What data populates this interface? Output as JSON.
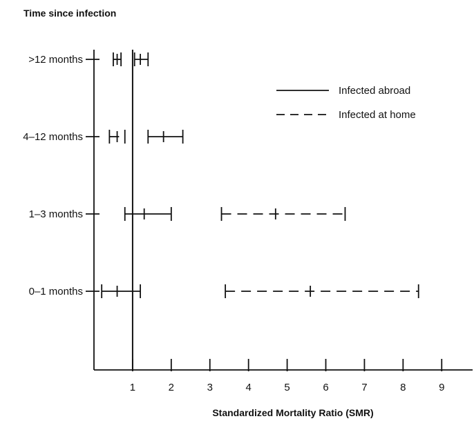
{
  "chart_data": {
    "type": "forest",
    "title": "Time since infection",
    "xlabel": "Standardized Mortality Ratio (SMR)",
    "ylabel": "",
    "xlim": [
      0,
      9.8
    ],
    "x_ticks": [
      1,
      2,
      3,
      4,
      5,
      6,
      7,
      8,
      9
    ],
    "reference_line": 1,
    "grid": false,
    "legend_position": "top-right",
    "categories": [
      ">12 months",
      "4–12 months",
      "1–3 months",
      "0–1 months"
    ],
    "series": [
      {
        "name": "Infected abroad",
        "line_style": "solid",
        "points": [
          {
            "category": ">12 months",
            "low": 1.05,
            "estimate": 1.2,
            "high": 1.4
          },
          {
            "category": "4–12 months",
            "low": 1.4,
            "estimate": 1.8,
            "high": 2.3
          },
          {
            "category": "1–3 months",
            "low": 0.8,
            "estimate": 1.3,
            "high": 2.0
          },
          {
            "category": "0–1 months",
            "low": 0.2,
            "estimate": 0.6,
            "high": 1.2
          }
        ]
      },
      {
        "name": "Infected at home",
        "line_style": "dashed",
        "points": [
          {
            "category": ">12 months",
            "low": 0.5,
            "estimate": 0.6,
            "high": 0.7
          },
          {
            "category": "4–12 months",
            "low": 0.4,
            "estimate": 0.6,
            "high": 0.8
          },
          {
            "category": "1–3 months",
            "low": 3.3,
            "estimate": 4.7,
            "high": 6.5
          },
          {
            "category": "0–1 months",
            "low": 3.4,
            "estimate": 5.6,
            "high": 8.4
          }
        ]
      }
    ]
  }
}
